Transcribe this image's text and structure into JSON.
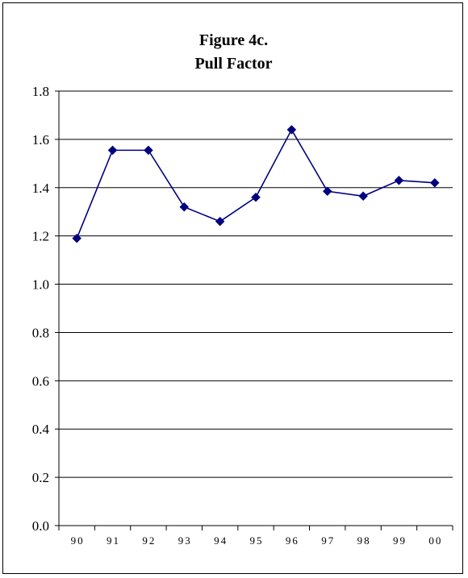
{
  "chart_data": {
    "type": "line",
    "title": "Figure 4c.",
    "subtitle": "Pull Factor",
    "xlabel": "",
    "ylabel": "",
    "categories": [
      "90",
      "91",
      "92",
      "93",
      "94",
      "95",
      "96",
      "97",
      "98",
      "99",
      "00"
    ],
    "series": [
      {
        "values": [
          1.19,
          1.555,
          1.555,
          1.32,
          1.26,
          1.36,
          1.64,
          1.385,
          1.365,
          1.43,
          1.42
        ],
        "color": "#000080",
        "marker": "diamond"
      }
    ],
    "ylim": [
      0,
      1.8
    ],
    "yticks": [
      "0.0",
      "0.2",
      "0.4",
      "0.6",
      "0.8",
      "1.0",
      "1.2",
      "1.4",
      "1.6",
      "1.8"
    ],
    "grid": true,
    "legend": "none"
  }
}
